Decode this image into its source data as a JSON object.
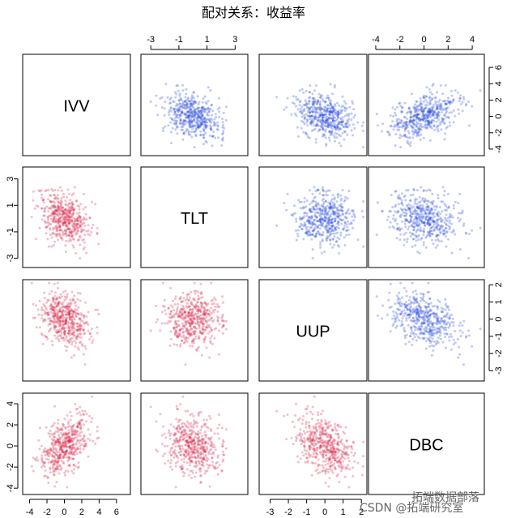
{
  "title": "配对关系：收益率",
  "watermark_top": "拓端数据部落",
  "watermark_bottom": "CSDN @拓端研究室",
  "colors": {
    "lower": "#d8183c",
    "upper": "#1e3fe0"
  },
  "chart_data": {
    "type": "scatter",
    "subtype": "pairs-matrix",
    "variables": [
      "IVV",
      "TLT",
      "UUP",
      "DBC"
    ],
    "axis_ticks": {
      "IVV": [
        -4,
        -2,
        0,
        2,
        4,
        6
      ],
      "TLT": [
        -3,
        -1,
        1,
        3
      ],
      "UUP": [
        -3,
        -2,
        -1,
        0,
        1,
        2
      ],
      "DBC": [
        -4,
        -2,
        0,
        2,
        4
      ]
    },
    "axis_tick_labels": {
      "IVV": [
        "-4",
        "-2",
        "0",
        "2",
        "4",
        "6"
      ],
      "TLT": [
        "-3",
        "-1",
        "1",
        "3"
      ],
      "UUP": [
        "-3",
        "-2",
        "-1",
        "0",
        "1",
        "2"
      ],
      "DBC": [
        "-4",
        "-2",
        "0",
        "2",
        "4"
      ]
    },
    "axis_ranges": {
      "IVV": [
        -4.8,
        7.6
      ],
      "TLT": [
        -3.7,
        3.9
      ],
      "UUP": [
        -3.6,
        2.3
      ],
      "DBC": [
        -4.6,
        5.0
      ]
    },
    "correlations": {
      "IVV-TLT": -0.42,
      "IVV-UUP": -0.38,
      "IVV-DBC": 0.48,
      "TLT-UUP": 0.08,
      "TLT-DBC": -0.2,
      "UUP-DBC": -0.42
    },
    "n_points": 480,
    "lower_panel_color": "red",
    "upper_panel_color": "blue",
    "diagonal": "variable names",
    "grid": false
  }
}
